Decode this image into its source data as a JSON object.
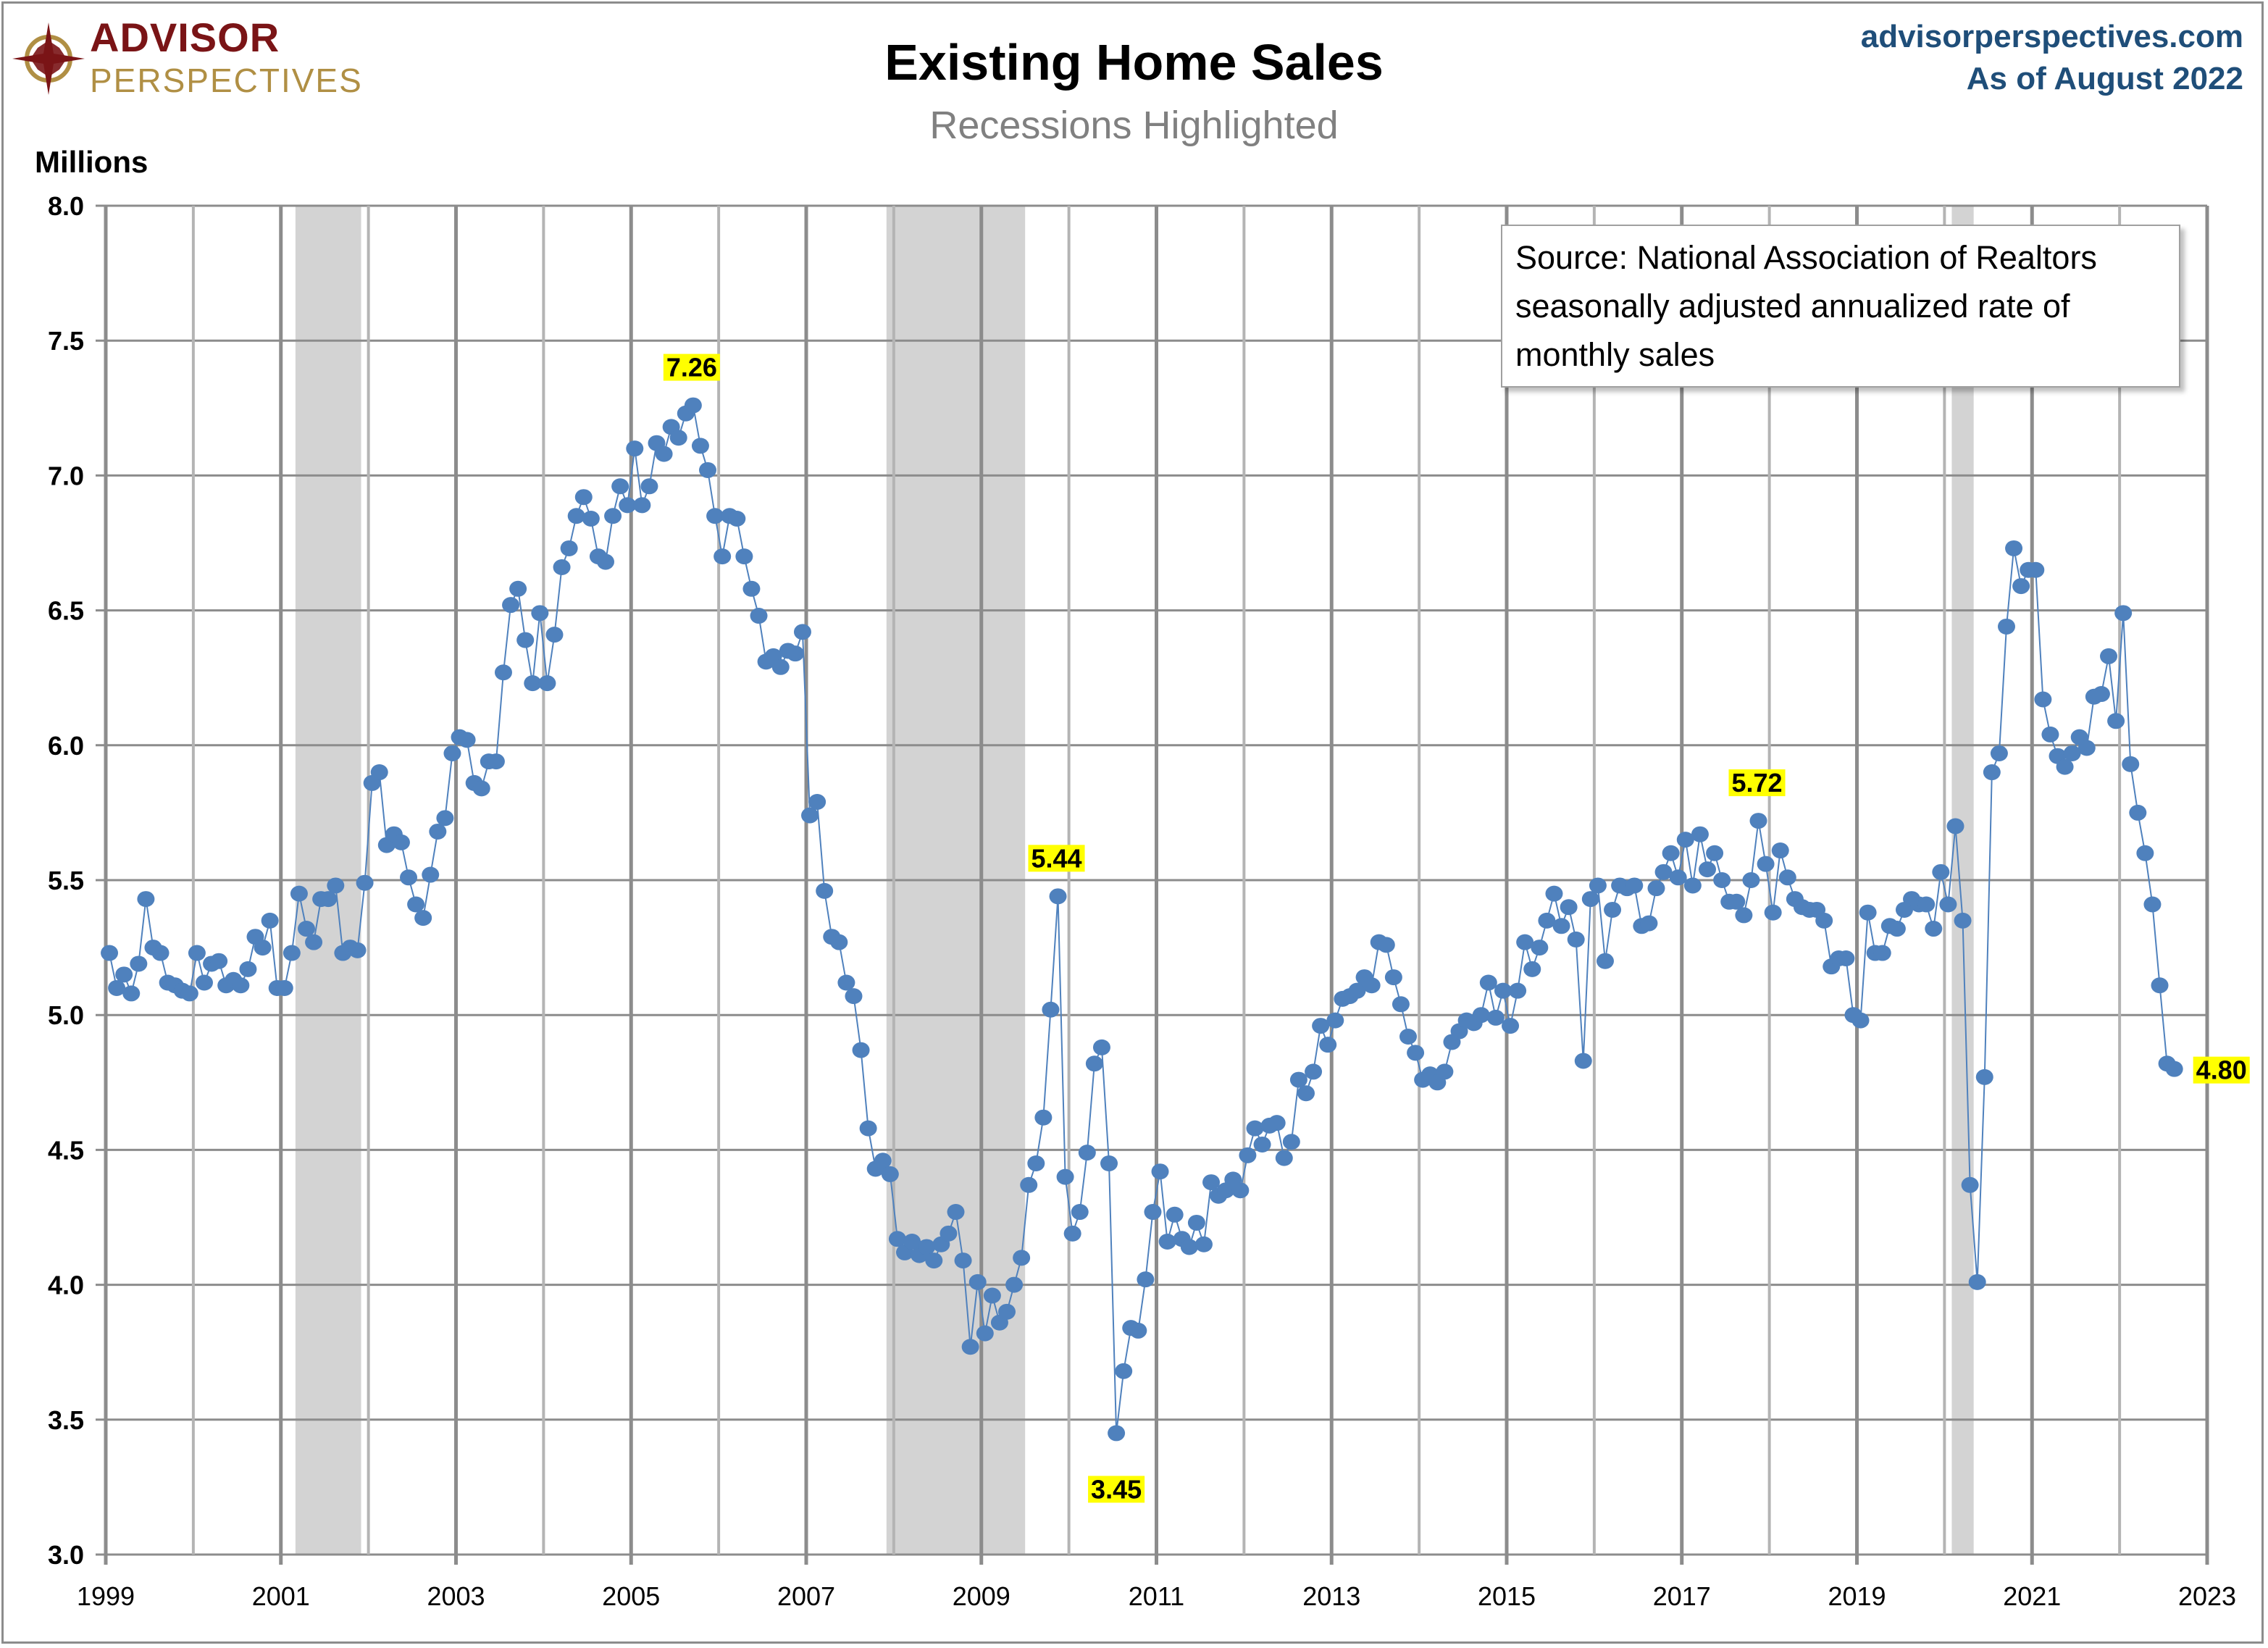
{
  "header": {
    "logo_line1": "ADVISOR",
    "logo_line2": "PERSPECTIVES",
    "website": "advisorperspectives.com",
    "as_of": "As of August 2022"
  },
  "colors": {
    "series": "#4f81bd",
    "recession": "#d3d3d3",
    "label_highlight": "#ffff00",
    "brand_red": "#7a1416",
    "brand_gold": "#b08f44",
    "header_blue": "#1f4e79"
  },
  "source_note": [
    "Source: National Association of Realtors",
    "seasonally adjusted annualized rate of",
    "monthly sales"
  ],
  "chart_data": {
    "type": "line",
    "title": "Existing Home Sales",
    "subtitle": "Recessions Highlighted",
    "ylabel": "Millions",
    "xlabel": "",
    "ylim": [
      3.0,
      8.0
    ],
    "yticks": [
      "3.0",
      "3.5",
      "4.0",
      "4.5",
      "5.0",
      "5.5",
      "6.0",
      "6.5",
      "7.0",
      "7.5",
      "8.0"
    ],
    "xlim": [
      1999,
      2023
    ],
    "xticks": [
      "1999",
      "2001",
      "2003",
      "2005",
      "2007",
      "2009",
      "2011",
      "2013",
      "2015",
      "2017",
      "2019",
      "2021",
      "2023"
    ],
    "grid": true,
    "markers": true,
    "frequency": "monthly",
    "recessions": [
      {
        "start": "2001-03",
        "end": "2001-11"
      },
      {
        "start": "2007-12",
        "end": "2009-06"
      },
      {
        "start": "2020-02",
        "end": "2020-04"
      }
    ],
    "series_by_year": [
      {
        "year": 1999,
        "values": [
          5.23,
          5.1,
          5.15,
          5.08,
          5.19,
          5.43,
          5.25,
          5.23,
          5.12,
          5.11,
          5.09,
          5.08
        ]
      },
      {
        "year": 2000,
        "values": [
          5.23,
          5.12,
          5.19,
          5.2,
          5.11,
          5.13,
          5.11,
          5.17,
          5.29,
          5.25,
          5.35,
          5.1
        ]
      },
      {
        "year": 2001,
        "values": [
          5.1,
          5.23,
          5.45,
          5.32,
          5.27,
          5.43,
          5.43,
          5.48,
          5.23,
          5.25,
          5.24,
          5.49
        ]
      },
      {
        "year": 2002,
        "values": [
          5.86,
          5.9,
          5.63,
          5.67,
          5.64,
          5.51,
          5.41,
          5.36,
          5.52,
          5.68,
          5.73,
          5.97
        ]
      },
      {
        "year": 2003,
        "values": [
          6.03,
          6.02,
          5.86,
          5.84,
          5.94,
          5.94,
          6.27,
          6.52,
          6.58,
          6.39,
          6.23,
          6.49
        ]
      },
      {
        "year": 2004,
        "values": [
          6.23,
          6.41,
          6.66,
          6.73,
          6.85,
          6.92,
          6.84,
          6.7,
          6.68,
          6.85,
          6.96,
          6.89
        ]
      },
      {
        "year": 2005,
        "values": [
          7.1,
          6.89,
          6.96,
          7.12,
          7.08,
          7.18,
          7.14,
          7.23,
          7.26,
          7.11,
          7.02,
          6.85
        ]
      },
      {
        "year": 2006,
        "values": [
          6.7,
          6.85,
          6.84,
          6.7,
          6.58,
          6.48,
          6.31,
          6.33,
          6.29,
          6.35,
          6.34,
          6.42
        ]
      },
      {
        "year": 2007,
        "values": [
          5.74,
          5.79,
          5.46,
          5.29,
          5.27,
          5.12,
          5.07,
          4.87,
          4.58,
          4.43,
          4.46,
          4.41
        ]
      },
      {
        "year": 2008,
        "values": [
          4.17,
          4.12,
          4.16,
          4.11,
          4.14,
          4.09,
          4.15,
          4.19,
          4.27,
          4.09,
          3.77,
          4.01
        ]
      },
      {
        "year": 2009,
        "values": [
          3.82,
          3.96,
          3.86,
          3.9,
          4.0,
          4.1,
          4.37,
          4.45,
          4.62,
          5.02,
          5.44,
          4.4
        ]
      },
      {
        "year": 2010,
        "values": [
          4.19,
          4.27,
          4.49,
          4.82,
          4.88,
          4.45,
          3.45,
          3.68,
          3.84,
          3.83,
          4.02,
          4.27
        ]
      },
      {
        "year": 2011,
        "values": [
          4.42,
          4.16,
          4.26,
          4.17,
          4.14,
          4.23,
          4.15,
          4.38,
          4.33,
          4.35,
          4.39,
          4.35
        ]
      },
      {
        "year": 2012,
        "values": [
          4.48,
          4.58,
          4.52,
          4.59,
          4.6,
          4.47,
          4.53,
          4.76,
          4.71,
          4.79,
          4.96,
          4.89
        ]
      },
      {
        "year": 2013,
        "values": [
          4.98,
          5.06,
          5.07,
          5.09,
          5.14,
          5.11,
          5.27,
          5.26,
          5.14,
          5.04,
          4.92,
          4.86
        ]
      },
      {
        "year": 2014,
        "values": [
          4.76,
          4.78,
          4.75,
          4.79,
          4.9,
          4.94,
          4.98,
          4.97,
          5.0,
          5.12,
          4.99,
          5.09
        ]
      },
      {
        "year": 2015,
        "values": [
          4.96,
          5.09,
          5.27,
          5.17,
          5.25,
          5.35,
          5.45,
          5.33,
          5.4,
          5.28,
          4.83,
          5.43
        ]
      },
      {
        "year": 2016,
        "values": [
          5.48,
          5.2,
          5.39,
          5.48,
          5.47,
          5.48,
          5.33,
          5.34,
          5.47,
          5.53,
          5.6,
          5.51
        ]
      },
      {
        "year": 2017,
        "values": [
          5.65,
          5.48,
          5.67,
          5.54,
          5.6,
          5.5,
          5.42,
          5.42,
          5.37,
          5.5,
          5.72,
          5.56
        ]
      },
      {
        "year": 2018,
        "values": [
          5.38,
          5.61,
          5.51,
          5.43,
          5.4,
          5.39,
          5.39,
          5.35,
          5.18,
          5.21,
          5.21,
          5.0
        ]
      },
      {
        "year": 2019,
        "values": [
          4.98,
          5.38,
          5.23,
          5.23,
          5.33,
          5.32,
          5.39,
          5.43,
          5.41,
          5.41,
          5.32,
          5.53
        ]
      },
      {
        "year": 2020,
        "values": [
          5.41,
          5.7,
          5.35,
          4.37,
          4.01,
          4.77,
          5.9,
          5.97,
          6.44,
          6.73,
          6.59,
          6.65
        ]
      },
      {
        "year": 2021,
        "values": [
          6.65,
          6.17,
          6.04,
          5.96,
          5.92,
          5.97,
          6.03,
          5.99,
          6.18,
          6.19,
          6.33,
          6.09
        ]
      },
      {
        "year": 2022,
        "values": [
          6.49,
          5.93,
          5.75,
          5.6,
          5.41,
          5.11,
          4.82,
          4.8
        ]
      }
    ],
    "annotations": [
      {
        "date": "2005-09",
        "value": 7.26,
        "label": "7.26",
        "position": "above"
      },
      {
        "date": "2009-11",
        "value": 5.44,
        "label": "5.44",
        "position": "above"
      },
      {
        "date": "2010-07",
        "value": 3.45,
        "label": "3.45",
        "position": "below"
      },
      {
        "date": "2017-11",
        "value": 5.72,
        "label": "5.72",
        "position": "above"
      },
      {
        "date": "2022-08",
        "value": 4.8,
        "label": "4.80",
        "position": "right"
      }
    ]
  }
}
